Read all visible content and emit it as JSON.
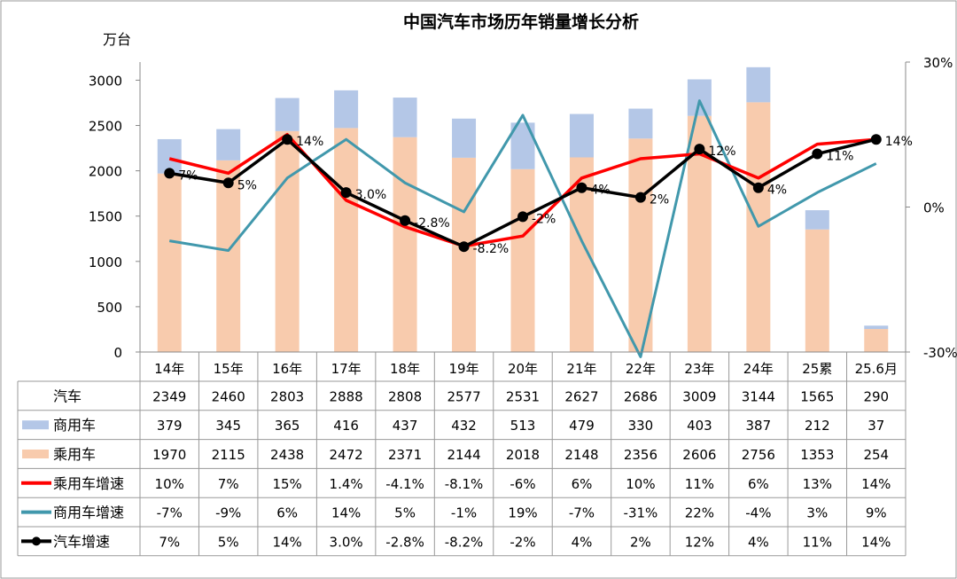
{
  "chart_data": {
    "type": "bar",
    "title": "中国汽车市场历年销量增长分析",
    "ylabel": "万台",
    "ylim": [
      0,
      3200
    ],
    "yticks": [
      0,
      500,
      1000,
      1500,
      2000,
      2500,
      3000
    ],
    "y2lim": [
      -30,
      30
    ],
    "y2ticks": [
      "-30%",
      "0%",
      "30%"
    ],
    "grid": false,
    "categories": [
      "14年",
      "15年",
      "16年",
      "17年",
      "18年",
      "19年",
      "20年",
      "21年",
      "22年",
      "23年",
      "24年",
      "25累",
      "25.6月"
    ],
    "table_rows": [
      {
        "name": "汽车",
        "values": [
          "2349",
          "2460",
          "2803",
          "2888",
          "2808",
          "2577",
          "2531",
          "2627",
          "2686",
          "3009",
          "3144",
          "1565",
          "290"
        ],
        "legend": "none"
      },
      {
        "name": "商用车",
        "values": [
          "379",
          "345",
          "365",
          "416",
          "437",
          "432",
          "513",
          "479",
          "330",
          "403",
          "387",
          "212",
          "37"
        ],
        "legend": "bar-commercial"
      },
      {
        "name": "乘用车",
        "values": [
          "1970",
          "2115",
          "2438",
          "2472",
          "2371",
          "2144",
          "2018",
          "2148",
          "2356",
          "2606",
          "2756",
          "1353",
          "254"
        ],
        "legend": "bar-passenger"
      },
      {
        "name": "乘用车增速",
        "values": [
          "10%",
          "7%",
          "15%",
          "1.4%",
          "-4.1%",
          "-8.1%",
          "-6%",
          "6%",
          "10%",
          "11%",
          "6%",
          "13%",
          "14%"
        ],
        "legend": "line-passenger"
      },
      {
        "name": "商用车增速",
        "values": [
          "-7%",
          "-9%",
          "6%",
          "14%",
          "5%",
          "-1%",
          "19%",
          "-7%",
          "-31%",
          "22%",
          "-4%",
          "3%",
          "9%"
        ],
        "legend": "line-commercial"
      },
      {
        "name": "汽车增速",
        "values": [
          "7%",
          "5%",
          "14%",
          "3.0%",
          "-2.8%",
          "-8.2%",
          "-2%",
          "4%",
          "2%",
          "12%",
          "4%",
          "11%",
          "14%"
        ],
        "legend": "line-total"
      }
    ],
    "series": [
      {
        "name": "乘用车",
        "type": "bar-stacked",
        "axis": "left",
        "values": [
          1970,
          2115,
          2438,
          2472,
          2371,
          2144,
          2018,
          2148,
          2356,
          2606,
          2756,
          1353,
          254
        ]
      },
      {
        "name": "商用车",
        "type": "bar-stacked",
        "axis": "left",
        "values": [
          379,
          345,
          365,
          416,
          437,
          432,
          513,
          479,
          330,
          403,
          387,
          212,
          37
        ]
      },
      {
        "name": "乘用车增速",
        "type": "line",
        "axis": "right",
        "values": [
          10,
          7,
          15,
          1.4,
          -4.1,
          -8.1,
          -6,
          6,
          10,
          11,
          6,
          13,
          14
        ]
      },
      {
        "name": "商用车增速",
        "type": "line",
        "axis": "right",
        "values": [
          -7,
          -9,
          6,
          14,
          5,
          -1,
          19,
          -7,
          -31,
          22,
          -4,
          3,
          9
        ]
      },
      {
        "name": "汽车增速",
        "type": "line-markers",
        "axis": "right",
        "values": [
          7,
          5,
          14,
          3.0,
          -2.8,
          -8.2,
          -2,
          4,
          2,
          12,
          4,
          11,
          14
        ],
        "labels": [
          "7%",
          "5%",
          "14%",
          "3.0%",
          "-2.8%",
          "-8.2%",
          "-2%",
          "4%",
          "2%",
          "12%",
          "4%",
          "11%",
          "14%"
        ]
      }
    ]
  },
  "colors": {
    "passenger_bar": "#F8CBAD",
    "commercial_bar": "#B4C7E7",
    "passenger_line": "#FF0000",
    "commercial_line": "#4198AC",
    "total_line": "#000000"
  }
}
